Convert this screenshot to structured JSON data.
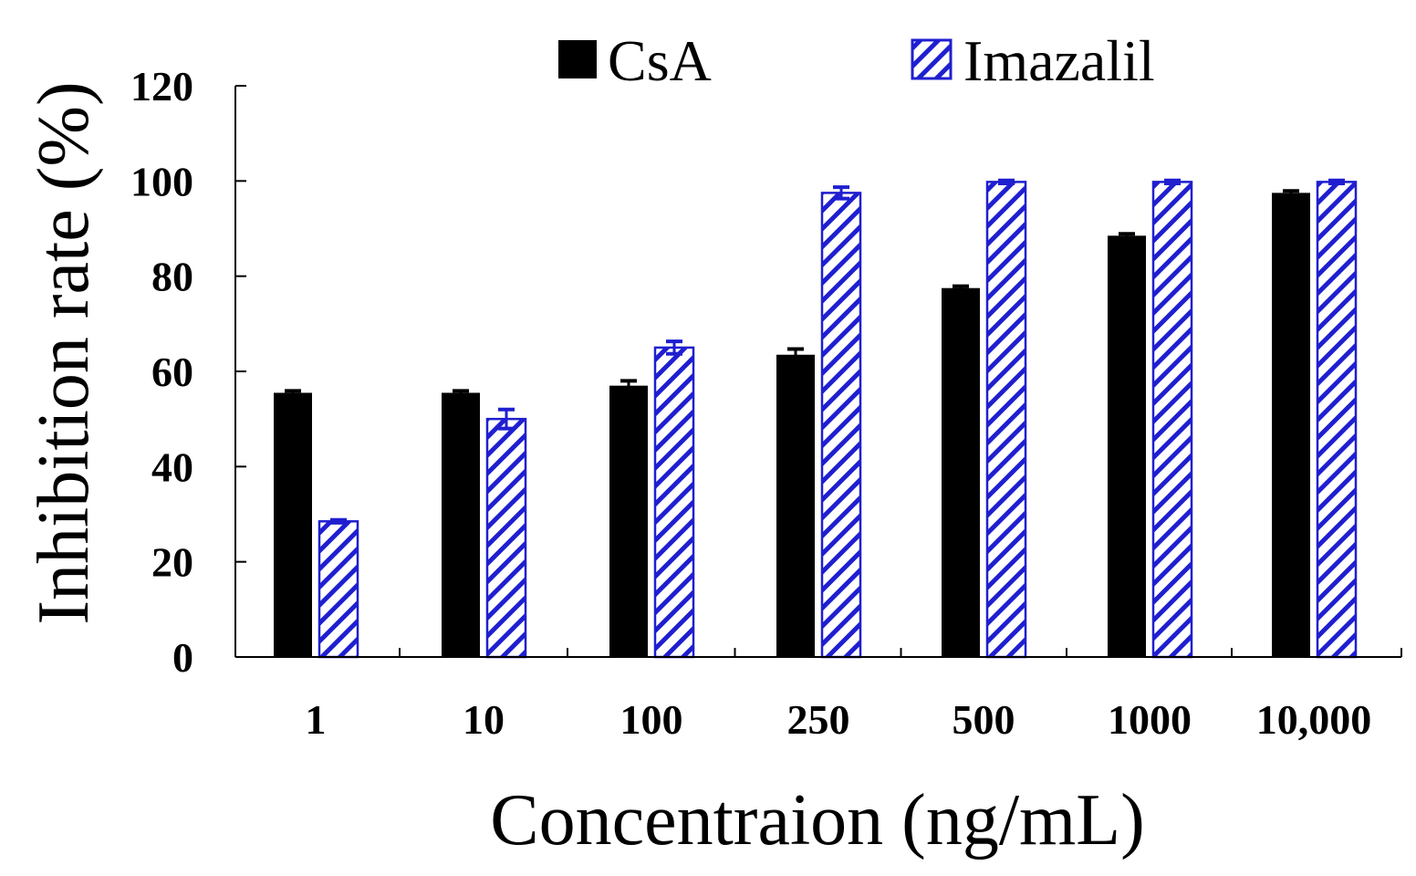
{
  "chart_data": {
    "type": "bar",
    "title": "",
    "xlabel": "Concentraion (ng/mL)",
    "ylabel": "Inhibition rate (%)",
    "categories": [
      "1",
      "10",
      "100",
      "250",
      "500",
      "1000",
      "10,000"
    ],
    "ylim": [
      0,
      120
    ],
    "yticks": [
      0,
      20,
      40,
      60,
      80,
      100,
      120
    ],
    "grid": false,
    "legend_position": "top",
    "series": [
      {
        "name": "CsA",
        "color": "#000000",
        "pattern": "solid",
        "values": [
          55.5,
          55.5,
          57.0,
          63.5,
          77.5,
          88.5,
          97.5
        ],
        "errors": [
          0.4,
          0.4,
          1.0,
          1.2,
          0.4,
          0.4,
          0.4
        ]
      },
      {
        "name": "Imazalil",
        "color": "#1f1fd0",
        "pattern": "hatched",
        "values": [
          28.5,
          50.0,
          65.0,
          97.5,
          99.8,
          99.8,
          99.8
        ],
        "errors": [
          0.3,
          2.0,
          1.3,
          1.2,
          0.3,
          0.3,
          0.3
        ]
      }
    ]
  }
}
